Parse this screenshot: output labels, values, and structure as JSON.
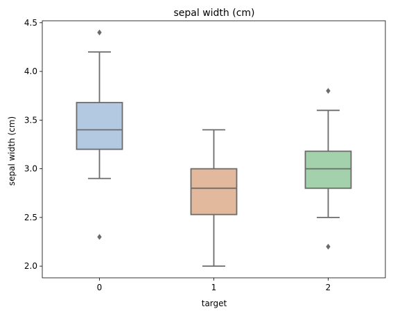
{
  "chart_data": {
    "type": "box",
    "title": "sepal width (cm)",
    "xlabel": "target",
    "ylabel": "sepal width (cm)",
    "categories": [
      "0",
      "1",
      "2"
    ],
    "ylim": [
      1.88,
      4.52
    ],
    "yticks": [
      2.0,
      2.5,
      3.0,
      3.5,
      4.0,
      4.5
    ],
    "ytick_labels": [
      "2.0",
      "2.5",
      "3.0",
      "3.5",
      "4.0",
      "4.5"
    ],
    "grid": false,
    "colors": [
      "#b3c9e2",
      "#e2b99c",
      "#a2d1ab"
    ],
    "edge_color": "#6b6b6b",
    "boxes": [
      {
        "q1": 3.2,
        "median": 3.4,
        "q3": 3.68,
        "whisker_low": 2.9,
        "whisker_high": 4.2,
        "fliers": [
          4.4,
          2.3
        ]
      },
      {
        "q1": 2.53,
        "median": 2.8,
        "q3": 3.0,
        "whisker_low": 2.0,
        "whisker_high": 3.4,
        "fliers": []
      },
      {
        "q1": 2.8,
        "median": 3.0,
        "q3": 3.18,
        "whisker_low": 2.5,
        "whisker_high": 3.6,
        "fliers": [
          3.8,
          2.2
        ]
      }
    ]
  }
}
